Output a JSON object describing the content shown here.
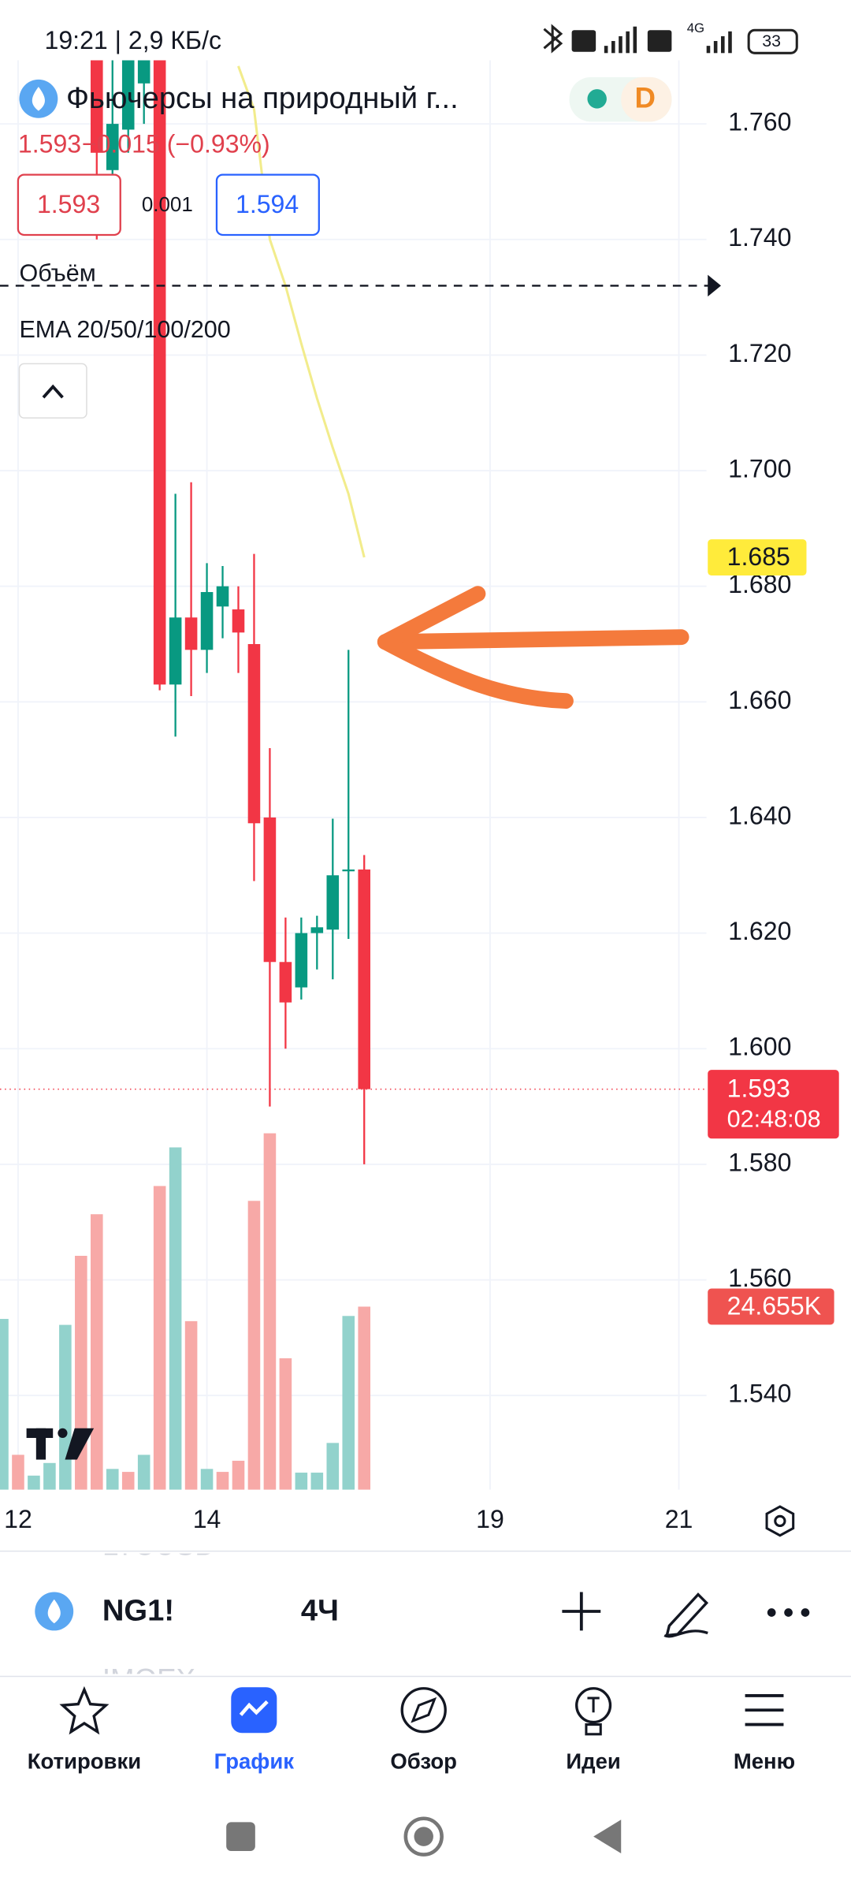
{
  "status_bar": {
    "time_speed": "19:21 | 2,9 КБ/с",
    "network": "4G",
    "battery": "33"
  },
  "header": {
    "title": "Фьючерсы на природный г...",
    "price": "1.593",
    "change": "−0.015 (−0.93%)",
    "bid": "1.593",
    "spread": "0.001",
    "ask": "1.594",
    "interval_badge": "D"
  },
  "indicators": {
    "volume": "Объём",
    "ema": "EMA 20/50/100/200"
  },
  "chart_data": {
    "type": "candlestick",
    "categories": [
      null,
      null,
      null,
      null,
      null,
      null,
      null,
      null,
      null,
      null,
      null,
      null,
      null,
      null,
      null,
      null,
      null,
      null,
      null,
      null,
      null,
      null,
      null,
      null
    ],
    "xlim": [
      -0.15,
      44.76
    ],
    "xticks": [
      {
        "value": 1,
        "label": "12"
      },
      {
        "value": 13,
        "label": "14"
      },
      {
        "value": 31,
        "label": "19"
      },
      {
        "value": 43,
        "label": "21"
      }
    ],
    "ylim": [
      1.5237,
      1.771
    ],
    "yticks": [
      {
        "value": 1.54,
        "label": "1.540"
      },
      {
        "value": 1.56,
        "label": "1.560"
      },
      {
        "value": 1.58,
        "label": "1.580"
      },
      {
        "value": 1.6,
        "label": "1.600"
      },
      {
        "value": 1.62,
        "label": "1.620"
      },
      {
        "value": 1.64,
        "label": "1.640"
      },
      {
        "value": 1.66,
        "label": "1.660"
      },
      {
        "value": 1.68,
        "label": "1.680"
      },
      {
        "value": 1.7,
        "label": "1.700"
      },
      {
        "value": 1.72,
        "label": "1.720"
      },
      {
        "value": 1.74,
        "label": "1.740"
      },
      {
        "value": 1.76,
        "label": "1.760"
      }
    ],
    "grid": true,
    "up_color": "#089981",
    "down_color": "#f23645",
    "open": [
      null,
      null,
      null,
      null,
      null,
      null,
      1.771,
      1.752,
      1.759,
      1.767,
      1.771,
      1.663,
      1.6746,
      1.669,
      1.6765,
      1.676,
      1.67,
      1.64,
      1.615,
      1.6106,
      1.62,
      1.6206,
      1.631,
      1.631
    ],
    "high": [
      null,
      null,
      null,
      null,
      null,
      null,
      1.771,
      1.771,
      1.771,
      1.771,
      1.771,
      1.696,
      1.698,
      1.684,
      1.6835,
      1.68,
      1.6856,
      1.652,
      1.6227,
      1.6227,
      1.623,
      1.6398,
      1.669,
      1.6335
    ],
    "low": [
      null,
      null,
      null,
      null,
      null,
      null,
      1.74,
      1.748,
      1.755,
      1.76,
      1.662,
      1.654,
      1.661,
      1.665,
      1.671,
      1.665,
      1.629,
      1.59,
      1.6,
      1.6085,
      1.6137,
      1.612,
      1.619,
      1.58
    ],
    "close": [
      null,
      null,
      null,
      null,
      null,
      null,
      1.755,
      1.76,
      1.771,
      1.771,
      1.663,
      1.6746,
      1.669,
      1.679,
      1.68,
      1.672,
      1.639,
      1.615,
      1.608,
      1.62,
      1.621,
      1.63,
      1.631,
      1.593
    ],
    "ema": {
      "color": "#f2ec8c",
      "values": [
        null,
        null,
        null,
        null,
        null,
        null,
        null,
        null,
        null,
        null,
        null,
        null,
        null,
        null,
        null,
        1.77,
        1.7625,
        1.74,
        1.732,
        1.722,
        1.7125,
        1.704,
        1.696,
        1.685
      ]
    },
    "volume": {
      "ylim": [
        0,
        192.5
      ],
      "values": [
        23.0,
        4.7,
        1.9,
        3.6,
        22.2,
        31.5,
        37.1,
        2.8,
        2.4,
        4.7,
        40.9,
        46.1,
        22.7,
        2.8,
        2.4,
        3.9,
        38.9,
        48.0,
        17.7,
        2.3,
        2.3,
        6.3,
        23.4,
        24.655
      ],
      "value_labels": [
        null,
        null,
        null,
        null,
        null,
        null,
        null,
        null,
        null,
        null,
        null,
        null,
        null,
        null,
        null,
        null,
        null,
        null,
        null,
        null,
        null,
        null,
        null,
        "24.655K"
      ],
      "colors": [
        "#92d2cc",
        "#f7a9a7",
        "#92d2cc",
        "#92d2cc",
        "#92d2cc",
        "#f7a9a7",
        "#f7a9a7",
        "#92d2cc",
        "#f7a9a7",
        "#92d2cc",
        "#f7a9a7",
        "#92d2cc",
        "#f7a9a7",
        "#92d2cc",
        "#f7a9a7",
        "#f7a9a7",
        "#f7a9a7",
        "#f7a9a7",
        "#f7a9a7",
        "#92d2cc",
        "#92d2cc",
        "#92d2cc",
        "#92d2cc",
        "#f7a9a7"
      ]
    },
    "last_price": 1.593,
    "countdown": "02:48:08",
    "hline": 1.732
  },
  "toolbar": {
    "symbol": "NG1!",
    "interval": "4Ч",
    "prev_symbol": "LTCUSD",
    "next_symbol": "IMOEX"
  },
  "nav": {
    "items": [
      "Котировки",
      "График",
      "Обзор",
      "Идеи",
      "Меню"
    ],
    "active": 1
  }
}
